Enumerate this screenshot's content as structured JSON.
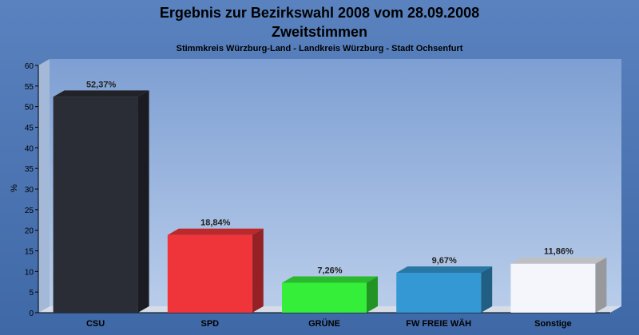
{
  "chart_data": {
    "type": "bar",
    "title": "Ergebnis zur Bezirkswahl 2008 vom 28.09.2008",
    "subtitle": "Zweitstimmen",
    "subsubtitle": "Stimmkreis Würzburg-Land - Landkreis Würzburg - Stadt Ochsenfurt",
    "ylabel": "%",
    "ylim": [
      0,
      60
    ],
    "yticks": [
      0,
      5,
      10,
      15,
      20,
      25,
      30,
      35,
      40,
      45,
      50,
      55,
      60
    ],
    "categories": [
      "CSU",
      "SPD",
      "GRÜNE",
      "FW FREIE WÄH",
      "Sonstige"
    ],
    "values": [
      52.37,
      18.84,
      7.26,
      9.67,
      11.86
    ],
    "value_labels": [
      "52,37%",
      "18,84%",
      "7,26%",
      "9,67%",
      "11,86%"
    ],
    "colors": [
      "#2a2d35",
      "#f0353a",
      "#35ee3a",
      "#3498d4",
      "#f4f6fb"
    ],
    "grid": false,
    "legend": "none"
  }
}
